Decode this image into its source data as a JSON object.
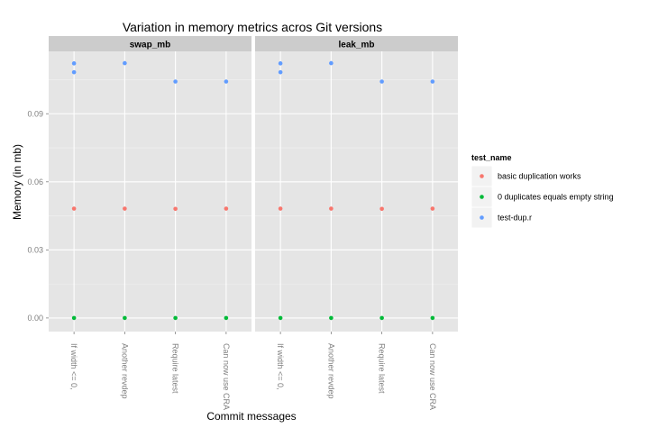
{
  "chart_data": {
    "type": "scatter",
    "title": "Variation in memory metrics acros Git versions",
    "xlabel": "Commit messages",
    "ylabel": "Memory (in mb)",
    "facets": [
      "swap_mb",
      "leak_mb"
    ],
    "categories": [
      "If width <= 0,",
      "Another revdep",
      "Require latest",
      "Can now use CRA"
    ],
    "yticks": [
      "0.00",
      "0.03",
      "0.06",
      "0.09"
    ],
    "ytick_values": [
      0.0,
      0.03,
      0.06,
      0.09
    ],
    "ylim": [
      -0.006,
      0.1175
    ],
    "grid": true,
    "legend": {
      "title": "test_name",
      "position": "right",
      "entries": [
        "basic duplication works",
        "0 duplicates equals empty string",
        "test-dup.r"
      ]
    },
    "series": [
      {
        "name": "basic duplication works",
        "color": "#F8766D",
        "points": {
          "swap_mb": [
            [
              0,
              0.0482
            ],
            [
              1,
              0.0482
            ],
            [
              2,
              0.0481
            ],
            [
              3,
              0.0482
            ]
          ],
          "leak_mb": [
            [
              0,
              0.0482
            ],
            [
              1,
              0.0482
            ],
            [
              2,
              0.0481
            ],
            [
              3,
              0.0482
            ]
          ]
        }
      },
      {
        "name": "0 duplicates equals empty string",
        "color": "#00BA38",
        "points": {
          "swap_mb": [
            [
              0,
              0.0
            ],
            [
              1,
              0.0
            ],
            [
              2,
              0.0
            ],
            [
              3,
              0.0
            ]
          ],
          "leak_mb": [
            [
              0,
              0.0
            ],
            [
              1,
              0.0
            ],
            [
              2,
              0.0
            ],
            [
              3,
              0.0
            ]
          ]
        }
      },
      {
        "name": "test-dup.r",
        "color": "#619CFF",
        "points": {
          "swap_mb": [
            [
              0,
              0.1122
            ],
            [
              0,
              0.1083
            ],
            [
              1,
              0.1123
            ],
            [
              2,
              0.1042
            ],
            [
              3,
              0.1042
            ]
          ],
          "leak_mb": [
            [
              0,
              0.1122
            ],
            [
              0,
              0.1083
            ],
            [
              1,
              0.1123
            ],
            [
              2,
              0.1042
            ],
            [
              3,
              0.1042
            ]
          ]
        }
      }
    ]
  }
}
